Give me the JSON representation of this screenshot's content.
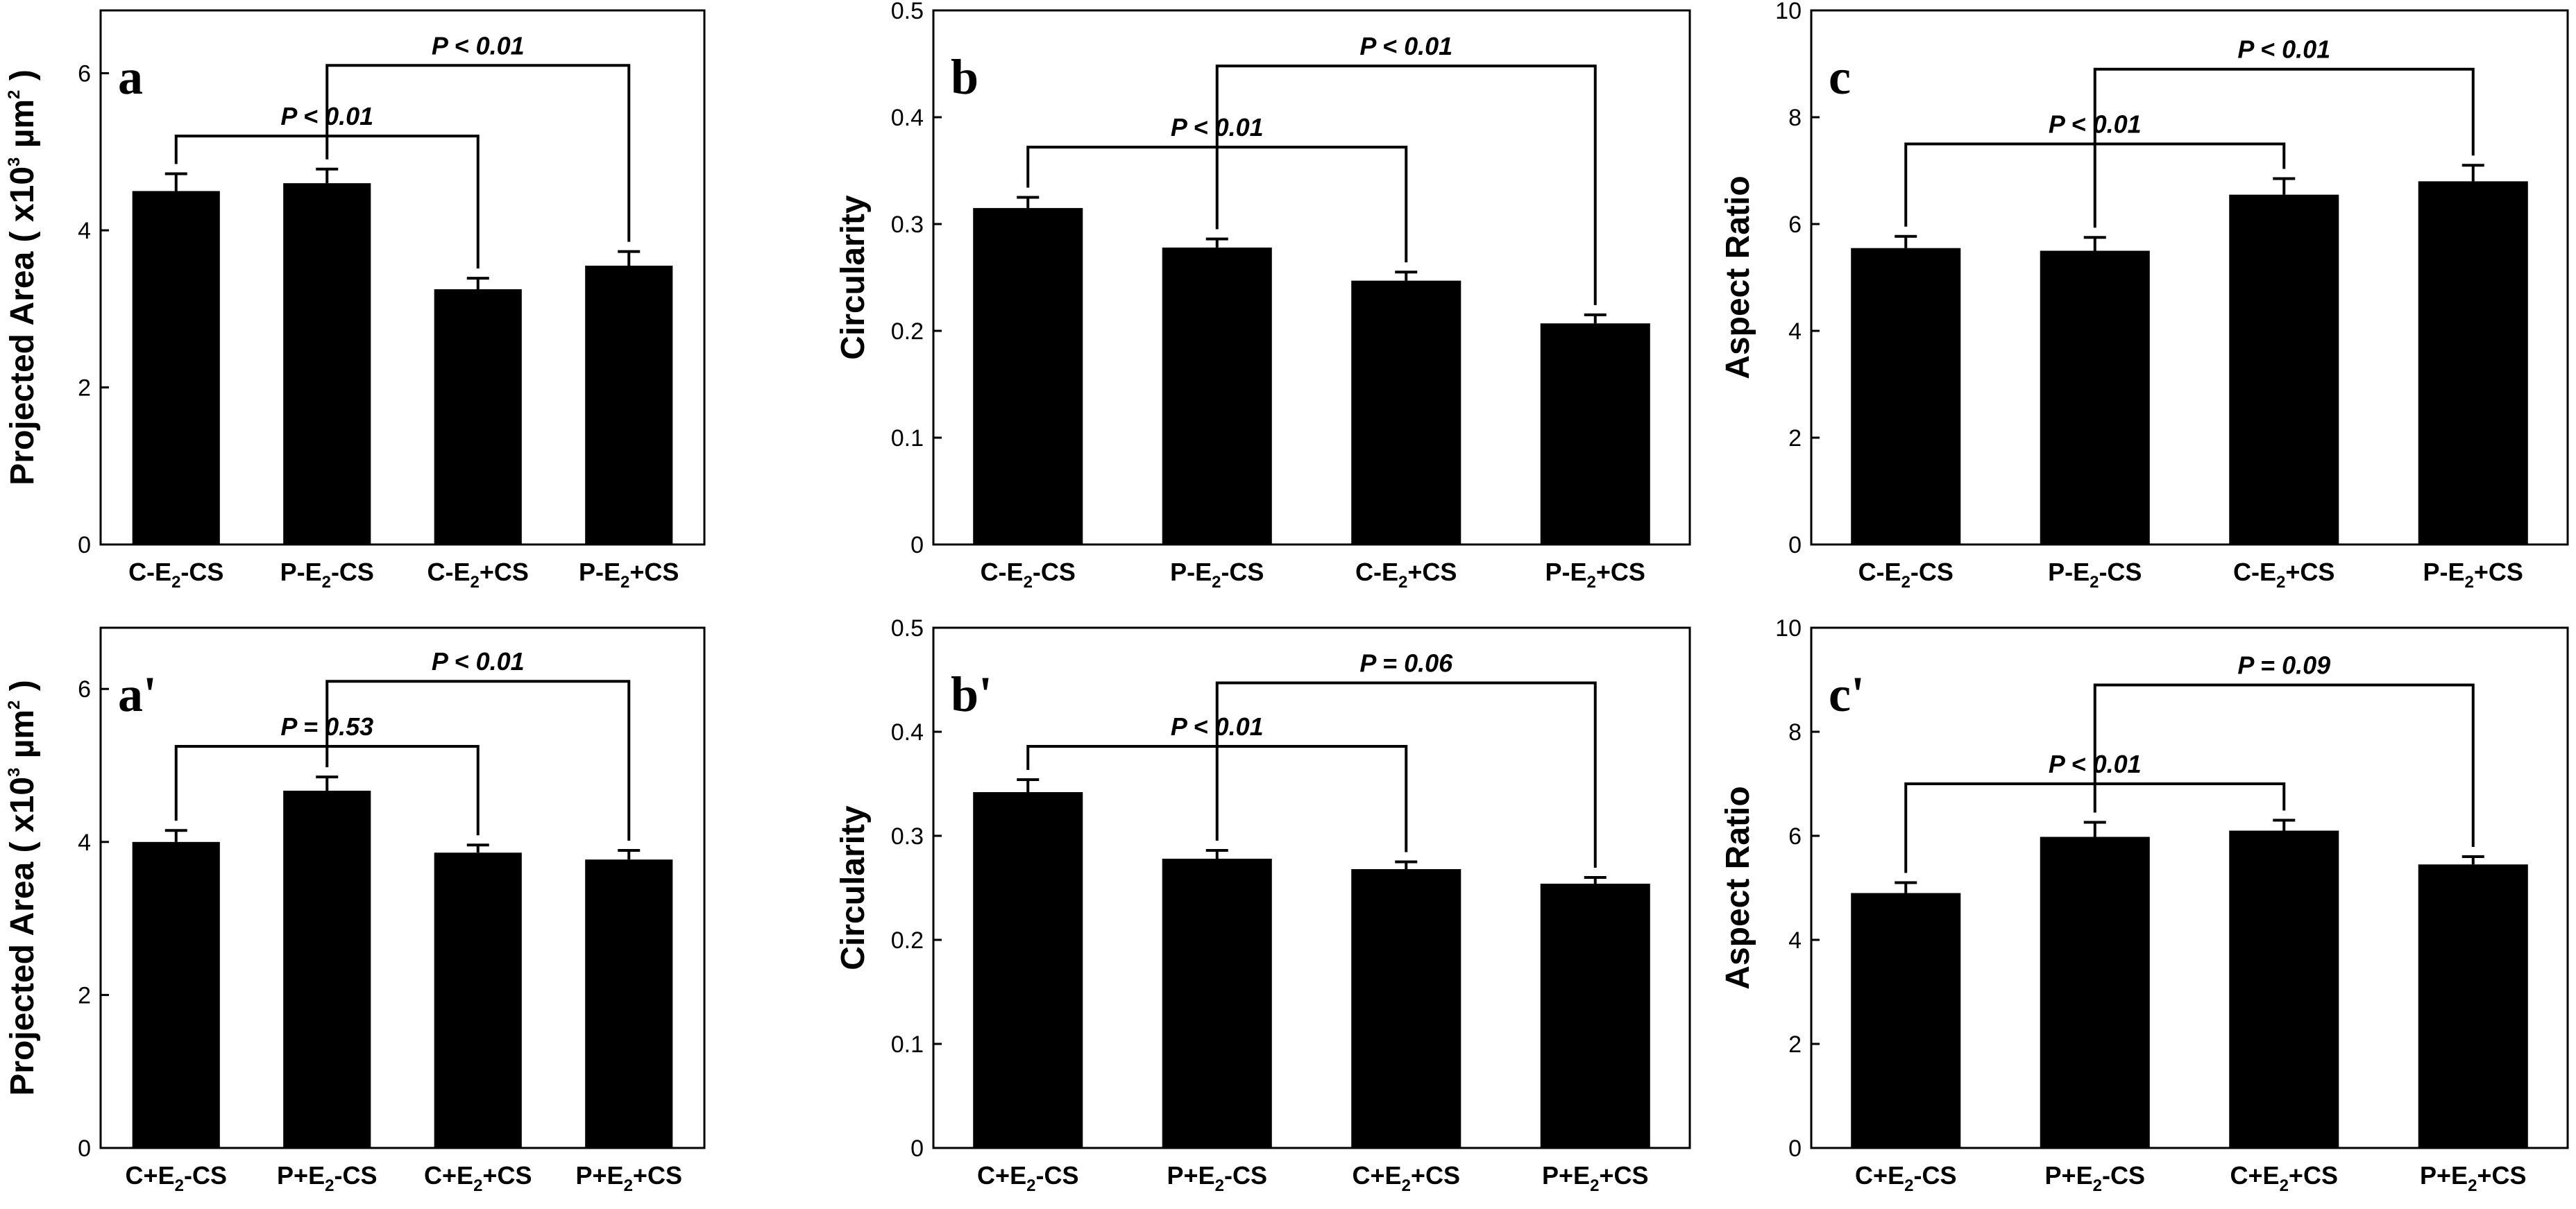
{
  "chart_data": [
    {
      "panel": "a",
      "type": "bar",
      "ylabel": "Projected Area ( x10^3 µm^2 )",
      "ylim": [
        0,
        6.8
      ],
      "yticks": [
        0,
        2,
        4,
        6
      ],
      "categories": [
        {
          "pre": "C-E",
          "sub": "2",
          "post": "-CS"
        },
        {
          "pre": "P-E",
          "sub": "2",
          "post": "-CS"
        },
        {
          "pre": "C-E",
          "sub": "2",
          "post": "+CS"
        },
        {
          "pre": "P-E",
          "sub": "2",
          "post": "+CS"
        }
      ],
      "values": [
        4.5,
        4.6,
        3.25,
        3.55
      ],
      "errors": [
        0.22,
        0.18,
        0.14,
        0.18
      ],
      "comparisons": [
        {
          "from": 1,
          "to": 3,
          "label": "P < 0.01",
          "level": 6.1
        },
        {
          "from": 0,
          "to": 2,
          "label": "P < 0.01",
          "level": 5.2
        }
      ]
    },
    {
      "panel": "b",
      "type": "bar",
      "ylabel": "Circularity",
      "ylim": [
        0,
        0.5
      ],
      "yticks": [
        "0",
        "0.1",
        "0.2",
        "0.3",
        "0.4",
        "0.5"
      ],
      "categories": [
        {
          "pre": "C-E",
          "sub": "2",
          "post": "-CS"
        },
        {
          "pre": "P-E",
          "sub": "2",
          "post": "-CS"
        },
        {
          "pre": "C-E",
          "sub": "2",
          "post": "+CS"
        },
        {
          "pre": "P-E",
          "sub": "2",
          "post": "+CS"
        }
      ],
      "values": [
        0.315,
        0.278,
        0.247,
        0.207
      ],
      "errors": [
        0.01,
        0.008,
        0.008,
        0.008
      ],
      "comparisons": [
        {
          "from": 1,
          "to": 3,
          "label": "P < 0.01",
          "level": 0.448
        },
        {
          "from": 0,
          "to": 2,
          "label": "P < 0.01",
          "level": 0.372
        }
      ]
    },
    {
      "panel": "c",
      "type": "bar",
      "ylabel": "Aspect Ratio",
      "ylim": [
        0,
        10
      ],
      "yticks": [
        0,
        2,
        4,
        6,
        8,
        10
      ],
      "categories": [
        {
          "pre": "C-E",
          "sub": "2",
          "post": "-CS"
        },
        {
          "pre": "P-E",
          "sub": "2",
          "post": "-CS"
        },
        {
          "pre": "C-E",
          "sub": "2",
          "post": "+CS"
        },
        {
          "pre": "P-E",
          "sub": "2",
          "post": "+CS"
        }
      ],
      "values": [
        5.55,
        5.5,
        6.55,
        6.8
      ],
      "errors": [
        0.22,
        0.25,
        0.3,
        0.3
      ],
      "comparisons": [
        {
          "from": 1,
          "to": 3,
          "label": "P < 0.01",
          "level": 8.9
        },
        {
          "from": 0,
          "to": 2,
          "label": "P < 0.01",
          "level": 7.5
        }
      ]
    },
    {
      "panel": "a'",
      "type": "bar",
      "ylabel": "Projected Area ( x10^3 µm^2 )",
      "ylim": [
        0,
        6.8
      ],
      "yticks": [
        0,
        2,
        4,
        6
      ],
      "categories": [
        {
          "pre": "C+E",
          "sub": "2",
          "post": "-CS"
        },
        {
          "pre": "P+E",
          "sub": "2",
          "post": "-CS"
        },
        {
          "pre": "C+E",
          "sub": "2",
          "post": "+CS"
        },
        {
          "pre": "P+E",
          "sub": "2",
          "post": "+CS"
        }
      ],
      "values": [
        4.0,
        4.67,
        3.86,
        3.77
      ],
      "errors": [
        0.15,
        0.18,
        0.1,
        0.12
      ],
      "comparisons": [
        {
          "from": 1,
          "to": 3,
          "label": "P < 0.01",
          "level": 6.1
        },
        {
          "from": 0,
          "to": 2,
          "label": "P = 0.53",
          "level": 5.25
        }
      ]
    },
    {
      "panel": "b'",
      "type": "bar",
      "ylabel": "Circularity",
      "ylim": [
        0,
        0.5
      ],
      "yticks": [
        "0",
        "0.1",
        "0.2",
        "0.3",
        "0.4",
        "0.5"
      ],
      "categories": [
        {
          "pre": "C+E",
          "sub": "2",
          "post": "-CS"
        },
        {
          "pre": "P+E",
          "sub": "2",
          "post": "-CS"
        },
        {
          "pre": "C+E",
          "sub": "2",
          "post": "+CS"
        },
        {
          "pre": "P+E",
          "sub": "2",
          "post": "+CS"
        }
      ],
      "values": [
        0.342,
        0.278,
        0.268,
        0.254
      ],
      "errors": [
        0.012,
        0.008,
        0.007,
        0.006
      ],
      "comparisons": [
        {
          "from": 1,
          "to": 3,
          "label": "P = 0.06",
          "level": 0.447
        },
        {
          "from": 0,
          "to": 2,
          "label": "P < 0.01",
          "level": 0.386
        }
      ]
    },
    {
      "panel": "c'",
      "type": "bar",
      "ylabel": "Aspect Ratio",
      "ylim": [
        0,
        10
      ],
      "yticks": [
        0,
        2,
        4,
        6,
        8,
        10
      ],
      "categories": [
        {
          "pre": "C+E",
          "sub": "2",
          "post": "-CS"
        },
        {
          "pre": "P+E",
          "sub": "2",
          "post": "-CS"
        },
        {
          "pre": "C+E",
          "sub": "2",
          "post": "+CS"
        },
        {
          "pre": "P+E",
          "sub": "2",
          "post": "+CS"
        }
      ],
      "values": [
        4.9,
        5.98,
        6.1,
        5.45
      ],
      "errors": [
        0.2,
        0.28,
        0.2,
        0.15
      ],
      "comparisons": [
        {
          "from": 1,
          "to": 3,
          "label": "P = 0.09",
          "level": 8.9
        },
        {
          "from": 0,
          "to": 2,
          "label": "P < 0.01",
          "level": 7.0
        }
      ]
    }
  ],
  "colors": {
    "bar": "#000000",
    "axis": "#000000",
    "background": "#ffffff"
  }
}
